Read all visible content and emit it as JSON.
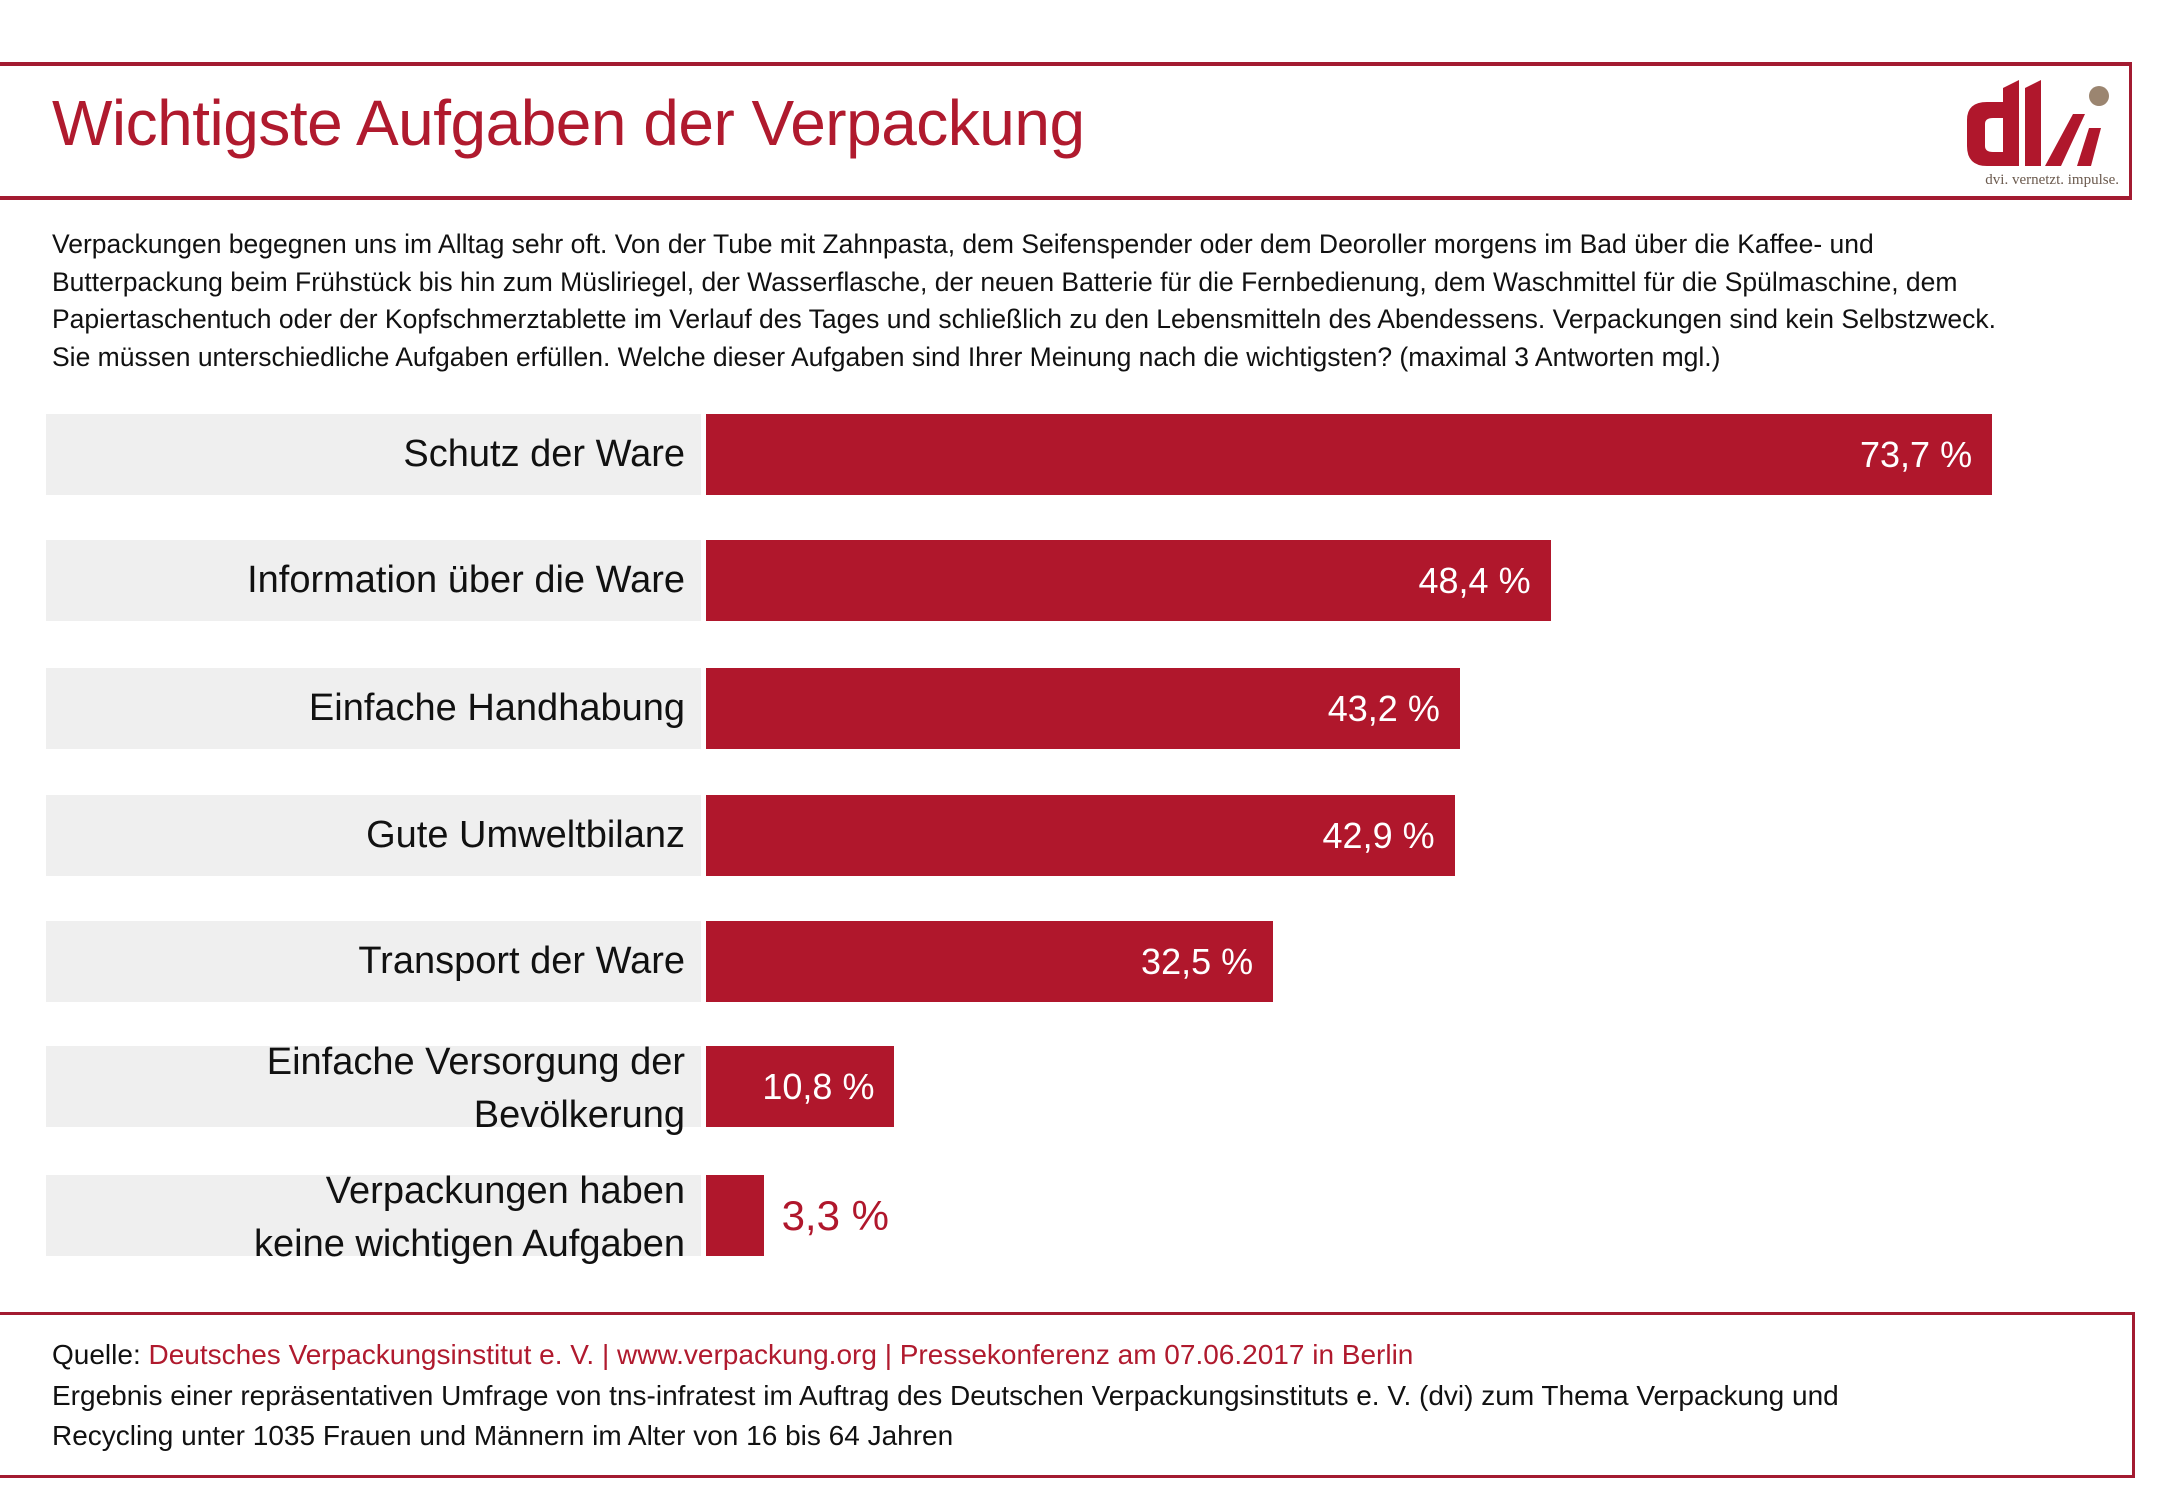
{
  "header": {
    "title": "Wichtigste Aufgaben der Verpackung",
    "logo_text": "dvi",
    "logo_tagline": "dvi. vernetzt. impulse."
  },
  "intro": {
    "lines": [
      "Verpackungen begegnen uns im Alltag sehr oft. Von der Tube mit Zahnpasta, dem Seifenspender oder dem Deoroller morgens im Bad über die Kaffee- und",
      "Butterpackung beim Frühstück bis hin zum Müsliriegel, der Wasserflasche, der neuen Batterie für die Fernbedienung, dem Waschmittel für die Spülmaschine, dem",
      "Papiertaschentuch oder der Kopfschmerztablette im Verlauf des Tages und schließlich zu den Lebensmitteln des Abendessens. Verpackungen sind kein Selbstzweck.",
      "Sie müssen unterschiedliche Aufgaben erfüllen. Welche dieser Aufgaben sind Ihrer Meinung nach die wichtigsten? (maximal 3 Antworten mgl.)"
    ]
  },
  "chart_data": {
    "type": "bar",
    "orientation": "horizontal",
    "title": "Wichtigste Aufgaben der Verpackung",
    "xlabel": "",
    "ylabel": "",
    "unit": "%",
    "xlim": [
      0,
      100
    ],
    "grid": false,
    "legend": "none",
    "categories": [
      [
        "Schutz der Ware"
      ],
      [
        "Information über die Ware"
      ],
      [
        "Einfache Handhabung"
      ],
      [
        "Gute Umweltbilanz"
      ],
      [
        "Transport der Ware"
      ],
      [
        "Einfache Versorgung der",
        "Bevölkerung"
      ],
      [
        "Verpackungen haben",
        "keine wichtigen Aufgaben"
      ]
    ],
    "values": [
      73.7,
      48.4,
      43.2,
      42.9,
      32.5,
      10.8,
      3.3
    ],
    "value_labels": [
      "73,7 %",
      "48,4 %",
      "43,2 %",
      "42,9 %",
      "32,5 %",
      "10,8 %",
      "3,3 %"
    ],
    "colors": {
      "bar": "#b0172c",
      "label_bg": "#efefef",
      "inside_label": "#ffffff",
      "outside_label": "#b0172c"
    }
  },
  "footer": {
    "source_prefix": "Quelle: ",
    "source": "Deutsches Verpackungsinstitut e. V. | www.verpackung.org | Pressekonferenz am 07.06.2017 in Berlin",
    "note_lines": [
      "Ergebnis einer repräsentativen Umfrage von tns-infratest im Auftrag des Deutschen Verpackungsinstituts e. V. (dvi) zum Thema Verpackung und",
      "Recycling unter 1035 Frauen und Männern im Alter von 16 bis 64 Jahren"
    ]
  },
  "colors": {
    "accent": "#b01a2e",
    "frame": "#a31b31",
    "logo_dot": "#9b8570"
  }
}
